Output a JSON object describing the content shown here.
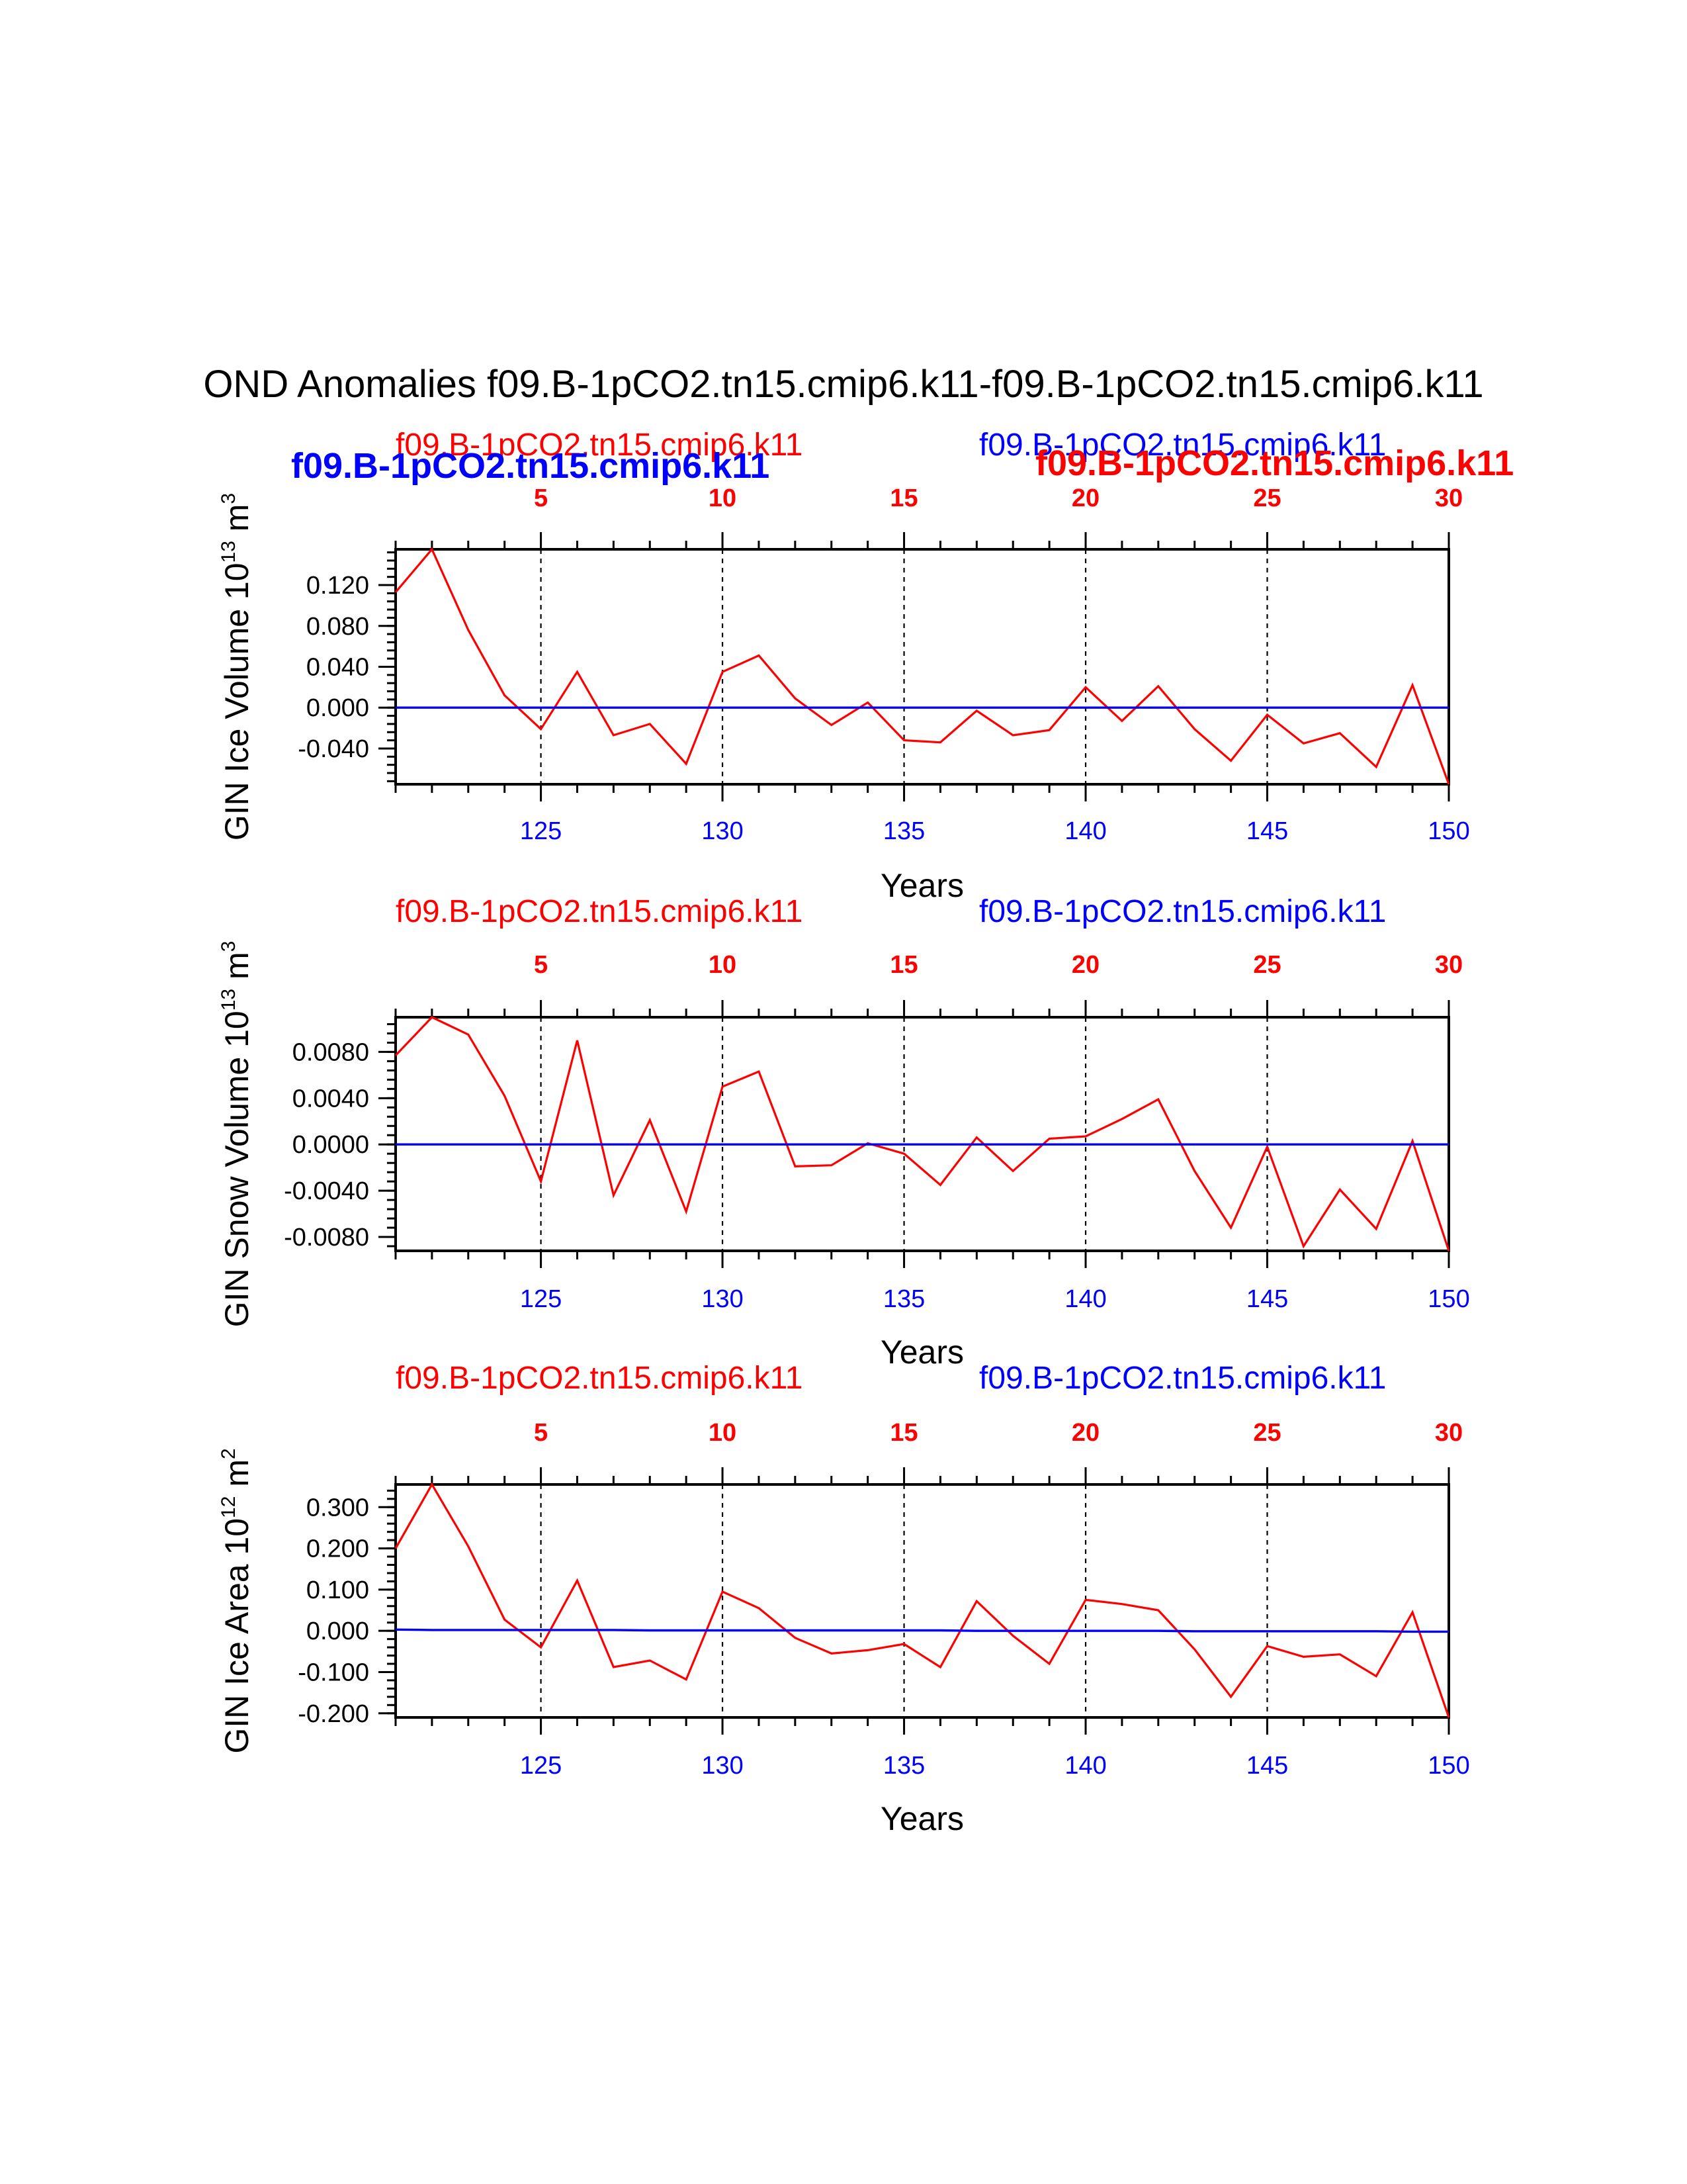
{
  "colors": {
    "anomaly_line": "#ff0000",
    "baseline_line": "#0000ff",
    "axis": "#000000"
  },
  "figure": {
    "title": "OND Anomalies f09.B-1pCO2.tn15.cmip6.k11-f09.B-1pCO2.tn15.cmip6.k11",
    "legend_overlay": {
      "blue_bold": "f09.B-1pCO2.tn15.cmip6.k11",
      "red_bold": "f09.B-1pCO2.tn15.cmip6.k11"
    }
  },
  "chart_data": [
    {
      "type": "line",
      "name": "ice-volume",
      "ylabel": "GIN Ice Volume 10",
      "ylabel_exp": "13",
      "ylabel_unit": " m",
      "ylabel_unit_exp": "3",
      "xlabel": "Years",
      "left_label": "f09.B-1pCO2.tn15.cmip6.k11",
      "right_label": "f09.B-1pCO2.tn15.cmip6.k11",
      "xlim": [
        121,
        150
      ],
      "ylim": [
        -0.075,
        0.155
      ],
      "x_ticks": [
        "125",
        "130",
        "135",
        "140",
        "145",
        "150"
      ],
      "x_tick_values": [
        125,
        130,
        135,
        140,
        145,
        150
      ],
      "top_ticks": [
        "5",
        "10",
        "15",
        "20",
        "25",
        "30"
      ],
      "y_ticks": [
        "-0.040",
        "0.000",
        "0.040",
        "0.080",
        "0.120"
      ],
      "y_tick_values": [
        -0.04,
        0.0,
        0.04,
        0.08,
        0.12
      ],
      "y_minor_step": 0.008,
      "x": [
        121,
        122,
        123,
        124,
        125,
        126,
        127,
        128,
        129,
        130,
        131,
        132,
        133,
        134,
        135,
        136,
        137,
        138,
        139,
        140,
        141,
        142,
        143,
        144,
        145,
        146,
        147,
        148,
        149,
        150
      ],
      "series": [
        {
          "name": "anomaly",
          "color": "#ff0000",
          "values": [
            0.113,
            0.155,
            0.076,
            0.012,
            -0.021,
            0.035,
            -0.027,
            -0.016,
            -0.055,
            0.035,
            0.051,
            0.009,
            -0.017,
            0.005,
            -0.032,
            -0.034,
            -0.003,
            -0.027,
            -0.022,
            0.02,
            -0.013,
            0.021,
            -0.021,
            -0.052,
            -0.007,
            -0.035,
            -0.025,
            -0.058,
            0.022,
            -0.075
          ]
        },
        {
          "name": "baseline",
          "color": "#0000ff",
          "values": [
            0,
            0,
            0,
            0,
            0,
            0,
            0,
            0,
            0,
            0,
            0,
            0,
            0,
            0,
            0,
            0,
            0,
            0,
            0,
            0,
            0,
            0,
            0,
            0,
            0,
            0,
            0,
            0,
            0,
            0
          ]
        }
      ]
    },
    {
      "type": "line",
      "name": "snow-volume",
      "ylabel": "GIN Snow Volume 10",
      "ylabel_exp": "13",
      "ylabel_unit": " m",
      "ylabel_unit_exp": "3",
      "xlabel": "Years",
      "left_label": "f09.B-1pCO2.tn15.cmip6.k11",
      "right_label": "f09.B-1pCO2.tn15.cmip6.k11",
      "xlim": [
        121,
        150
      ],
      "ylim": [
        -0.0092,
        0.011
      ],
      "x_ticks": [
        "125",
        "130",
        "135",
        "140",
        "145",
        "150"
      ],
      "x_tick_values": [
        125,
        130,
        135,
        140,
        145,
        150
      ],
      "top_ticks": [
        "5",
        "10",
        "15",
        "20",
        "25",
        "30"
      ],
      "y_ticks": [
        "-0.0080",
        "-0.0040",
        "0.0000",
        "0.0040",
        "0.0080"
      ],
      "y_tick_values": [
        -0.008,
        -0.004,
        0.0,
        0.004,
        0.008
      ],
      "y_minor_step": 0.0008,
      "x": [
        121,
        122,
        123,
        124,
        125,
        126,
        127,
        128,
        129,
        130,
        131,
        132,
        133,
        134,
        135,
        136,
        137,
        138,
        139,
        140,
        141,
        142,
        143,
        144,
        145,
        146,
        147,
        148,
        149,
        150
      ],
      "series": [
        {
          "name": "anomaly",
          "color": "#ff0000",
          "values": [
            0.0077,
            0.011,
            0.0095,
            0.0042,
            -0.0032,
            0.009,
            -0.0044,
            0.0021,
            -0.0058,
            0.005,
            0.0063,
            -0.0019,
            -0.0018,
            0.0001,
            -0.0008,
            -0.0035,
            0.0006,
            -0.0023,
            0.0005,
            0.0007,
            0.0022,
            0.0039,
            -0.0023,
            -0.0072,
            -0.0002,
            -0.0088,
            -0.0039,
            -0.0073,
            0.0003,
            -0.0092
          ]
        },
        {
          "name": "baseline",
          "color": "#0000ff",
          "values": [
            0,
            0,
            0,
            0,
            0,
            0,
            0,
            0,
            0,
            0,
            0,
            0,
            0,
            0,
            0,
            0,
            0,
            0,
            0,
            0,
            0,
            0,
            0,
            0,
            0,
            0,
            0,
            0,
            0,
            0
          ]
        }
      ]
    },
    {
      "type": "line",
      "name": "ice-area",
      "ylabel": "GIN Ice Area 10",
      "ylabel_exp": "12",
      "ylabel_unit": " m",
      "ylabel_unit_exp": "2",
      "xlabel": "Years",
      "left_label": "f09.B-1pCO2.tn15.cmip6.k11",
      "right_label": "f09.B-1pCO2.tn15.cmip6.k11",
      "xlim": [
        121,
        150
      ],
      "ylim": [
        -0.21,
        0.355
      ],
      "x_ticks": [
        "125",
        "130",
        "135",
        "140",
        "145",
        "150"
      ],
      "x_tick_values": [
        125,
        130,
        135,
        140,
        145,
        150
      ],
      "top_ticks": [
        "5",
        "10",
        "15",
        "20",
        "25",
        "30"
      ],
      "y_ticks": [
        "-0.200",
        "-0.100",
        "0.000",
        "0.100",
        "0.200",
        "0.300"
      ],
      "y_tick_values": [
        -0.2,
        -0.1,
        0.0,
        0.1,
        0.2,
        0.3
      ],
      "y_minor_step": 0.02,
      "x": [
        121,
        122,
        123,
        124,
        125,
        126,
        127,
        128,
        129,
        130,
        131,
        132,
        133,
        134,
        135,
        136,
        137,
        138,
        139,
        140,
        141,
        142,
        143,
        144,
        145,
        146,
        147,
        148,
        149,
        150
      ],
      "series": [
        {
          "name": "anomaly",
          "color": "#ff0000",
          "values": [
            0.2,
            0.355,
            0.205,
            0.027,
            -0.04,
            0.122,
            -0.088,
            -0.072,
            -0.118,
            0.095,
            0.055,
            -0.017,
            -0.055,
            -0.047,
            -0.032,
            -0.088,
            0.072,
            -0.012,
            -0.08,
            0.075,
            0.065,
            0.05,
            -0.045,
            -0.16,
            -0.037,
            -0.063,
            -0.057,
            -0.11,
            0.045,
            -0.21
          ]
        },
        {
          "name": "baseline",
          "color": "#0000ff",
          "values": [
            0.003,
            0.002,
            0.002,
            0.002,
            0.002,
            0.002,
            0.002,
            0.001,
            0.001,
            0.001,
            0.001,
            0.001,
            0.001,
            0.001,
            0.001,
            0.001,
            0.0,
            0.0,
            0.0,
            0.0,
            0.0,
            0.0,
            -0.001,
            -0.001,
            -0.001,
            -0.001,
            -0.001,
            -0.001,
            -0.002,
            -0.002
          ]
        }
      ]
    }
  ]
}
